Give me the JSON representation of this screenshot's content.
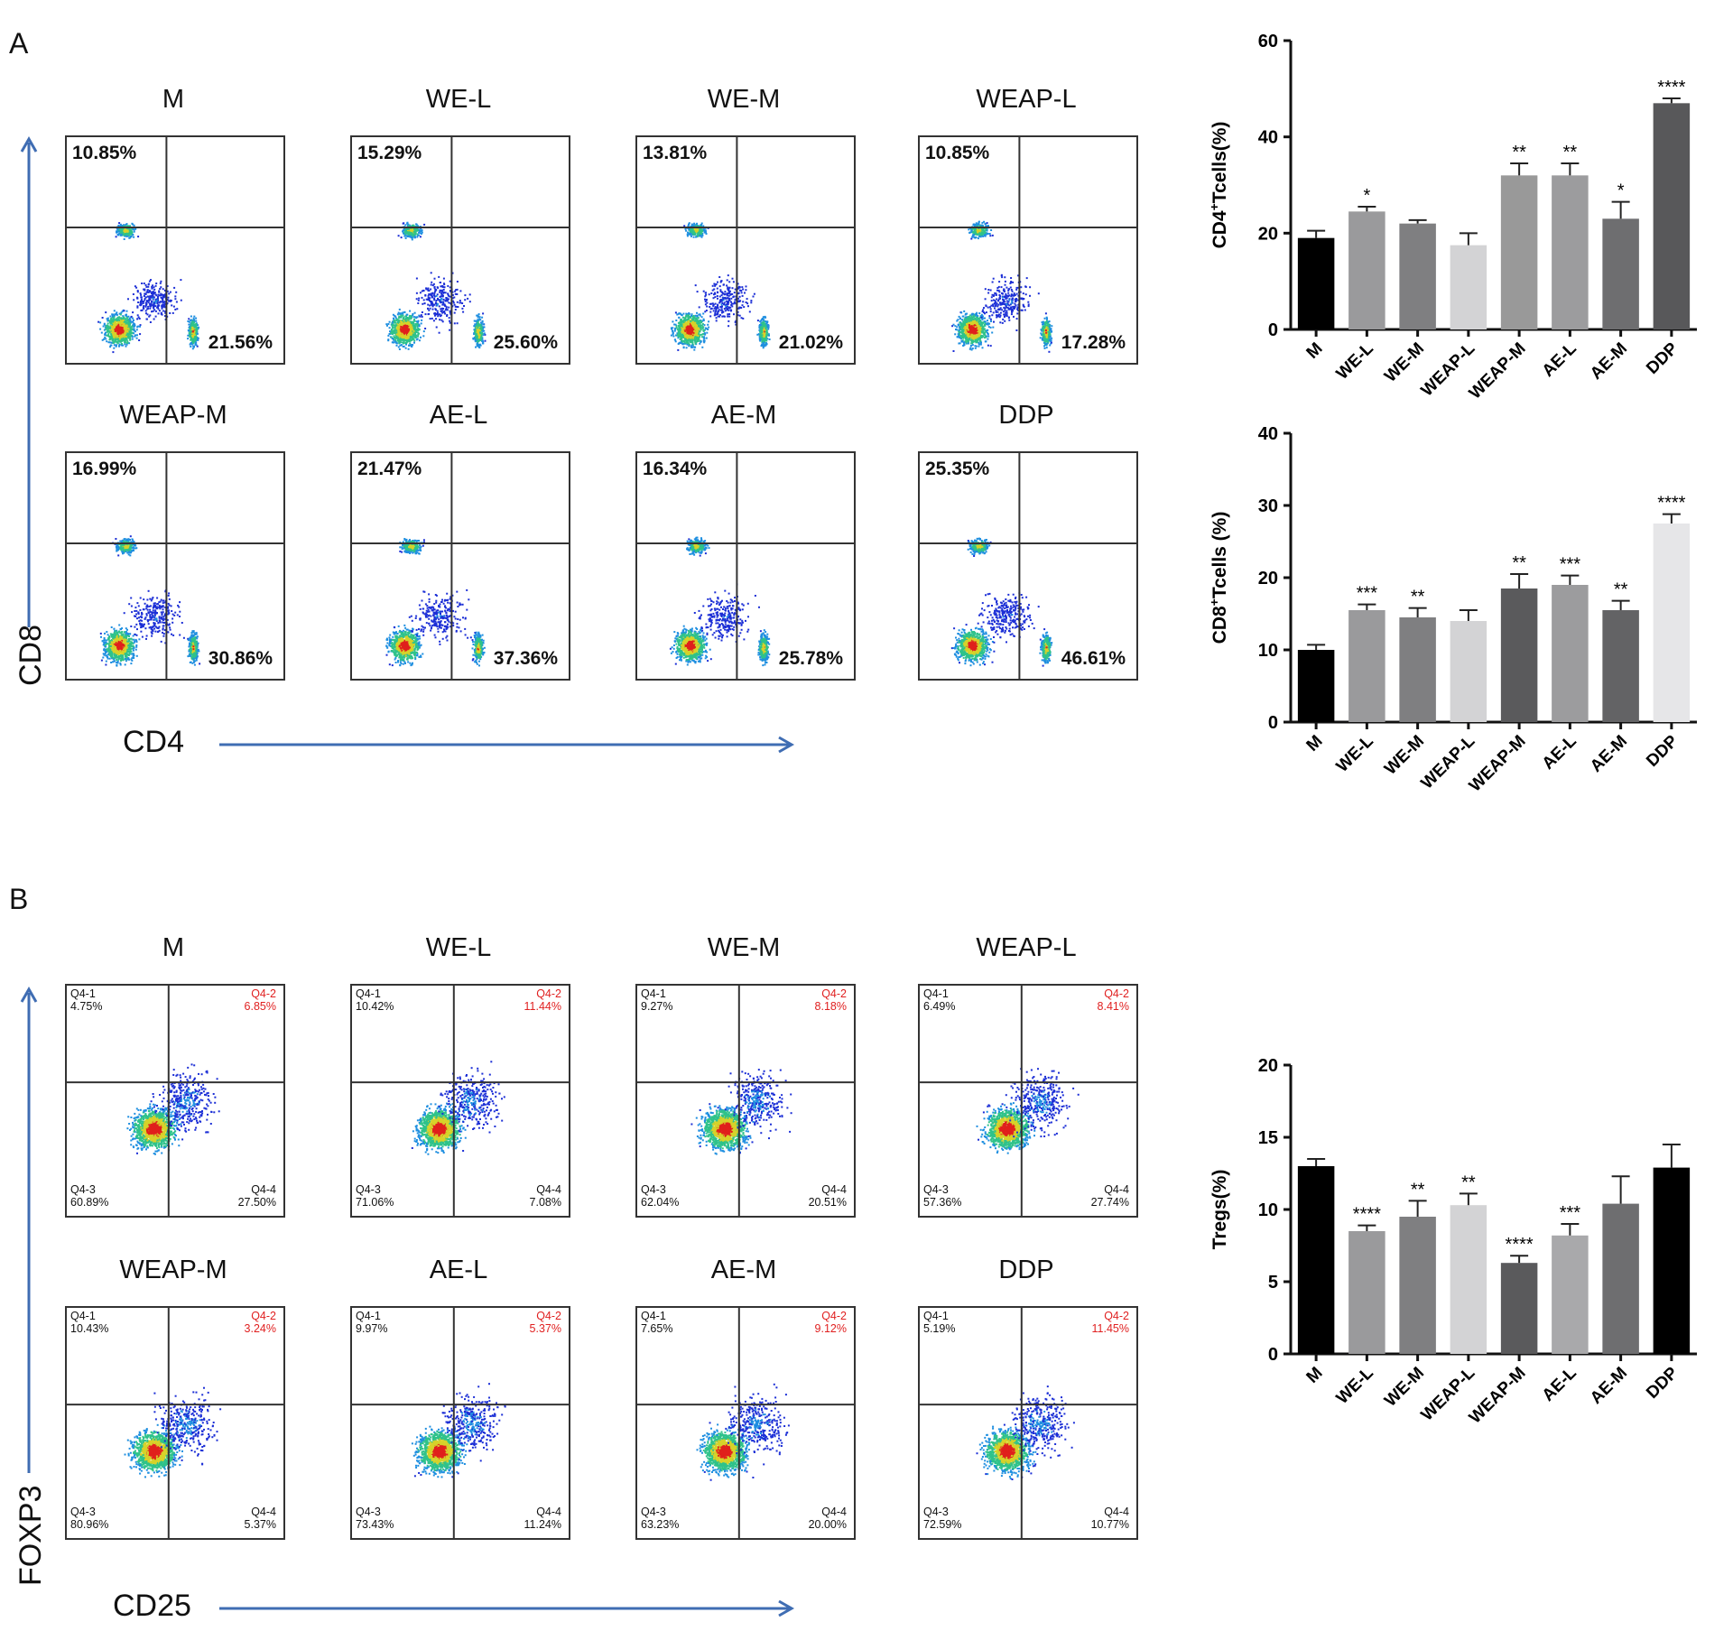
{
  "panel_a": {
    "letter": "A",
    "y_axis_label": "CD8",
    "x_axis_label": "CD4",
    "plots": [
      {
        "title": "M",
        "ul": "10.85%",
        "lr": "21.56%"
      },
      {
        "title": "WE-L",
        "ul": "15.29%",
        "lr": "25.60%"
      },
      {
        "title": "WE-M",
        "ul": "13.81%",
        "lr": "21.02%"
      },
      {
        "title": "WEAP-L",
        "ul": "10.85%",
        "lr": "17.28%"
      },
      {
        "title": "WEAP-M",
        "ul": "16.99%",
        "lr": "30.86%"
      },
      {
        "title": "AE-L",
        "ul": "21.47%",
        "lr": "37.36%"
      },
      {
        "title": "AE-M",
        "ul": "16.34%",
        "lr": "25.78%"
      },
      {
        "title": "DDP",
        "ul": "25.35%",
        "lr": "46.61%"
      }
    ]
  },
  "panel_b": {
    "letter": "B",
    "y_axis_label": "FOXP3",
    "x_axis_label": "CD25",
    "plots": [
      {
        "title": "M",
        "q1": "Q4-1",
        "q1v": "4.75%",
        "q2": "Q4-2",
        "q2v": "6.85%",
        "q3": "Q4-3",
        "q3v": "60.89%",
        "q4": "Q4-4",
        "q4v": "27.50%"
      },
      {
        "title": "WE-L",
        "q1": "Q4-1",
        "q1v": "10.42%",
        "q2": "Q4-2",
        "q2v": "11.44%",
        "q3": "Q4-3",
        "q3v": "71.06%",
        "q4": "Q4-4",
        "q4v": "7.08%"
      },
      {
        "title": "WE-M",
        "q1": "Q4-1",
        "q1v": "9.27%",
        "q2": "Q4-2",
        "q2v": "8.18%",
        "q3": "Q4-3",
        "q3v": "62.04%",
        "q4": "Q4-4",
        "q4v": "20.51%"
      },
      {
        "title": "WEAP-L",
        "q1": "Q4-1",
        "q1v": "6.49%",
        "q2": "Q4-2",
        "q2v": "8.41%",
        "q3": "Q4-3",
        "q3v": "57.36%",
        "q4": "Q4-4",
        "q4v": "27.74%"
      },
      {
        "title": "WEAP-M",
        "q1": "Q4-1",
        "q1v": "10.43%",
        "q2": "Q4-2",
        "q2v": "3.24%",
        "q3": "Q4-3",
        "q3v": "80.96%",
        "q4": "Q4-4",
        "q4v": "5.37%"
      },
      {
        "title": "AE-L",
        "q1": "Q4-1",
        "q1v": "9.97%",
        "q2": "Q4-2",
        "q2v": "5.37%",
        "q3": "Q4-3",
        "q3v": "73.43%",
        "q4": "Q4-4",
        "q4v": "11.24%"
      },
      {
        "title": "AE-M",
        "q1": "Q4-1",
        "q1v": "7.65%",
        "q2": "Q4-2",
        "q2v": "9.12%",
        "q3": "Q4-3",
        "q3v": "63.23%",
        "q4": "Q4-4",
        "q4v": "20.00%"
      },
      {
        "title": "DDP",
        "q1": "Q4-1",
        "q1v": "5.19%",
        "q2": "Q4-2",
        "q2v": "11.45%",
        "q3": "Q4-3",
        "q3v": "72.59%",
        "q4": "Q4-4",
        "q4v": "10.77%"
      }
    ]
  },
  "colors": {
    "arrow": "#3f6db3",
    "gate_line": "#333333",
    "red_label": "#e02020",
    "bar_palette": [
      "#000000",
      "#9a9a9c",
      "#7f7f81",
      "#d3d3d5",
      "#6e6e70",
      "#a9a9ab",
      "#5a5a5c",
      "#4e4e50"
    ]
  },
  "chart_data": [
    {
      "type": "bar",
      "ylabel_main": "CD4",
      "ylabel_sup": "+",
      "ylabel_rest": "Tcells(%)",
      "categories": [
        "M",
        "WE-L",
        "WE-M",
        "WEAP-L",
        "WEAP-M",
        "AE-L",
        "AE-M",
        "DDP"
      ],
      "values": [
        19,
        24.5,
        22,
        17.5,
        32,
        32,
        23,
        47
      ],
      "errors": [
        1.5,
        1,
        0.7,
        2.5,
        2.5,
        2.5,
        3.5,
        1
      ],
      "significance": [
        "",
        "*",
        "",
        "",
        "**",
        "**",
        "*",
        "****"
      ],
      "ylim": [
        0,
        60
      ],
      "yticks": [
        0,
        20,
        40,
        60
      ],
      "bar_colors": [
        "#000000",
        "#9a9a9c",
        "#7f7f81",
        "#d3d3d5",
        "#999999",
        "#9c9c9e",
        "#6e6e70",
        "#58585a"
      ]
    },
    {
      "type": "bar",
      "ylabel_main": "CD8",
      "ylabel_sup": "+",
      "ylabel_rest": "Tcells (%)",
      "categories": [
        "M",
        "WE-L",
        "WE-M",
        "WEAP-L",
        "WEAP-M",
        "AE-L",
        "AE-M",
        "DDP"
      ],
      "values": [
        10,
        15.5,
        14.5,
        14,
        18.5,
        19,
        15.5,
        27.5
      ],
      "errors": [
        0.7,
        0.8,
        1.3,
        1.5,
        2,
        1.3,
        1.3,
        1.3
      ],
      "significance": [
        "",
        "***",
        "**",
        "",
        "**",
        "***",
        "**",
        "****"
      ],
      "ylim": [
        0,
        40
      ],
      "yticks": [
        0,
        10,
        20,
        30,
        40
      ],
      "bar_colors": [
        "#000000",
        "#9a9a9c",
        "#7f7f81",
        "#d3d3d5",
        "#5a5a5c",
        "#9c9c9e",
        "#636365",
        "#e6e6e8"
      ]
    },
    {
      "type": "bar",
      "ylabel_main": "Tregs(%)",
      "ylabel_sup": "",
      "ylabel_rest": "",
      "categories": [
        "M",
        "WE-L",
        "WE-M",
        "WEAP-L",
        "WEAP-M",
        "AE-L",
        "AE-M",
        "DDP"
      ],
      "values": [
        13,
        8.5,
        9.5,
        10.3,
        6.3,
        8.2,
        10.4,
        12.9
      ],
      "errors": [
        0.5,
        0.4,
        1.1,
        0.8,
        0.5,
        0.8,
        1.9,
        1.6
      ],
      "significance": [
        "",
        "****",
        "**",
        "**",
        "****",
        "***",
        "",
        ""
      ],
      "ylim": [
        0,
        20
      ],
      "yticks": [
        0,
        5,
        10,
        15,
        20
      ],
      "bar_colors": [
        "#000000",
        "#9a9a9c",
        "#7f7f81",
        "#d3d3d5",
        "#5a5a5c",
        "#a9a9ab",
        "#6e6e70",
        "#000000"
      ]
    }
  ]
}
